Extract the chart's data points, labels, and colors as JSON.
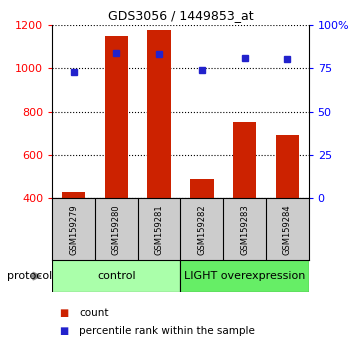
{
  "title": "GDS3056 / 1449853_at",
  "samples": [
    "GSM159279",
    "GSM159280",
    "GSM159281",
    "GSM159282",
    "GSM159283",
    "GSM159284"
  ],
  "counts": [
    430,
    1150,
    1175,
    490,
    750,
    690
  ],
  "percentile_ranks": [
    73,
    84,
    83,
    74,
    81,
    80
  ],
  "bar_color": "#cc2200",
  "marker_color": "#2222cc",
  "ylim_left": [
    400,
    1200
  ],
  "ylim_right": [
    0,
    100
  ],
  "yticks_left": [
    400,
    600,
    800,
    1000,
    1200
  ],
  "yticks_right": [
    0,
    25,
    50,
    75,
    100
  ],
  "ytick_labels_right": [
    "0",
    "25",
    "50",
    "75",
    "100%"
  ],
  "groups": [
    {
      "label": "control",
      "n": 3,
      "color": "#aaffaa"
    },
    {
      "label": "LIGHT overexpression",
      "n": 3,
      "color": "#66ee66"
    }
  ],
  "protocol_label": "protocol",
  "legend_count_label": "count",
  "legend_percentile_label": "percentile rank within the sample",
  "background_color": "#ffffff",
  "bar_bottom": 400,
  "sample_box_color": "#cccccc"
}
